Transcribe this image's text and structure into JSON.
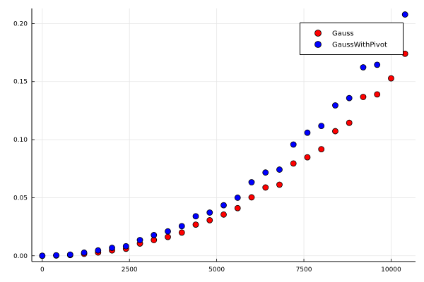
{
  "chart_data": {
    "type": "scatter",
    "title": "",
    "xlabel": "",
    "ylabel": "",
    "xlim": [
      -300,
      10700
    ],
    "ylim": [
      -0.005,
      0.213
    ],
    "grid": true,
    "legend_position": "top-right",
    "x_ticks": [
      {
        "value": 0,
        "label": "0"
      },
      {
        "value": 2500,
        "label": "2500"
      },
      {
        "value": 5000,
        "label": "5000"
      },
      {
        "value": 7500,
        "label": "7500"
      },
      {
        "value": 10000,
        "label": "10000"
      }
    ],
    "y_ticks": [
      {
        "value": 0.0,
        "label": "0.00"
      },
      {
        "value": 0.05,
        "label": "0.05"
      },
      {
        "value": 0.1,
        "label": "0.10"
      },
      {
        "value": 0.15,
        "label": "0.15"
      },
      {
        "value": 0.2,
        "label": "0.20"
      }
    ],
    "series": [
      {
        "name": "Gauss",
        "color": "#ff0000",
        "x": [
          0,
          400,
          800,
          1200,
          1600,
          2000,
          2400,
          2800,
          3200,
          3600,
          4000,
          4400,
          4800,
          5200,
          5600,
          6000,
          6400,
          6800,
          7200,
          7600,
          8000,
          8400,
          8800,
          9200,
          9600,
          10000,
          10400
        ],
        "y": [
          0.0,
          0.0002,
          0.0006,
          0.0017,
          0.0028,
          0.0046,
          0.006,
          0.0105,
          0.0135,
          0.0162,
          0.02,
          0.0268,
          0.0306,
          0.0355,
          0.041,
          0.0503,
          0.0588,
          0.0612,
          0.0795,
          0.0848,
          0.0918,
          0.1073,
          0.1145,
          0.1368,
          0.139,
          0.1528,
          0.174
        ]
      },
      {
        "name": "GaussWithPivot",
        "color": "#0000ff",
        "x": [
          0,
          400,
          800,
          1200,
          1600,
          2000,
          2400,
          2800,
          3200,
          3600,
          4000,
          4400,
          4800,
          5200,
          5600,
          6000,
          6400,
          6800,
          7200,
          7600,
          8000,
          8400,
          8800,
          9200,
          9600,
          10400
        ],
        "y": [
          0.0,
          0.0004,
          0.001,
          0.0027,
          0.0046,
          0.0068,
          0.0082,
          0.0135,
          0.0178,
          0.021,
          0.0255,
          0.034,
          0.0372,
          0.0435,
          0.05,
          0.0633,
          0.0717,
          0.0742,
          0.0958,
          0.106,
          0.1118,
          0.1295,
          0.1358,
          0.1623,
          0.1645,
          0.2078
        ]
      }
    ]
  }
}
